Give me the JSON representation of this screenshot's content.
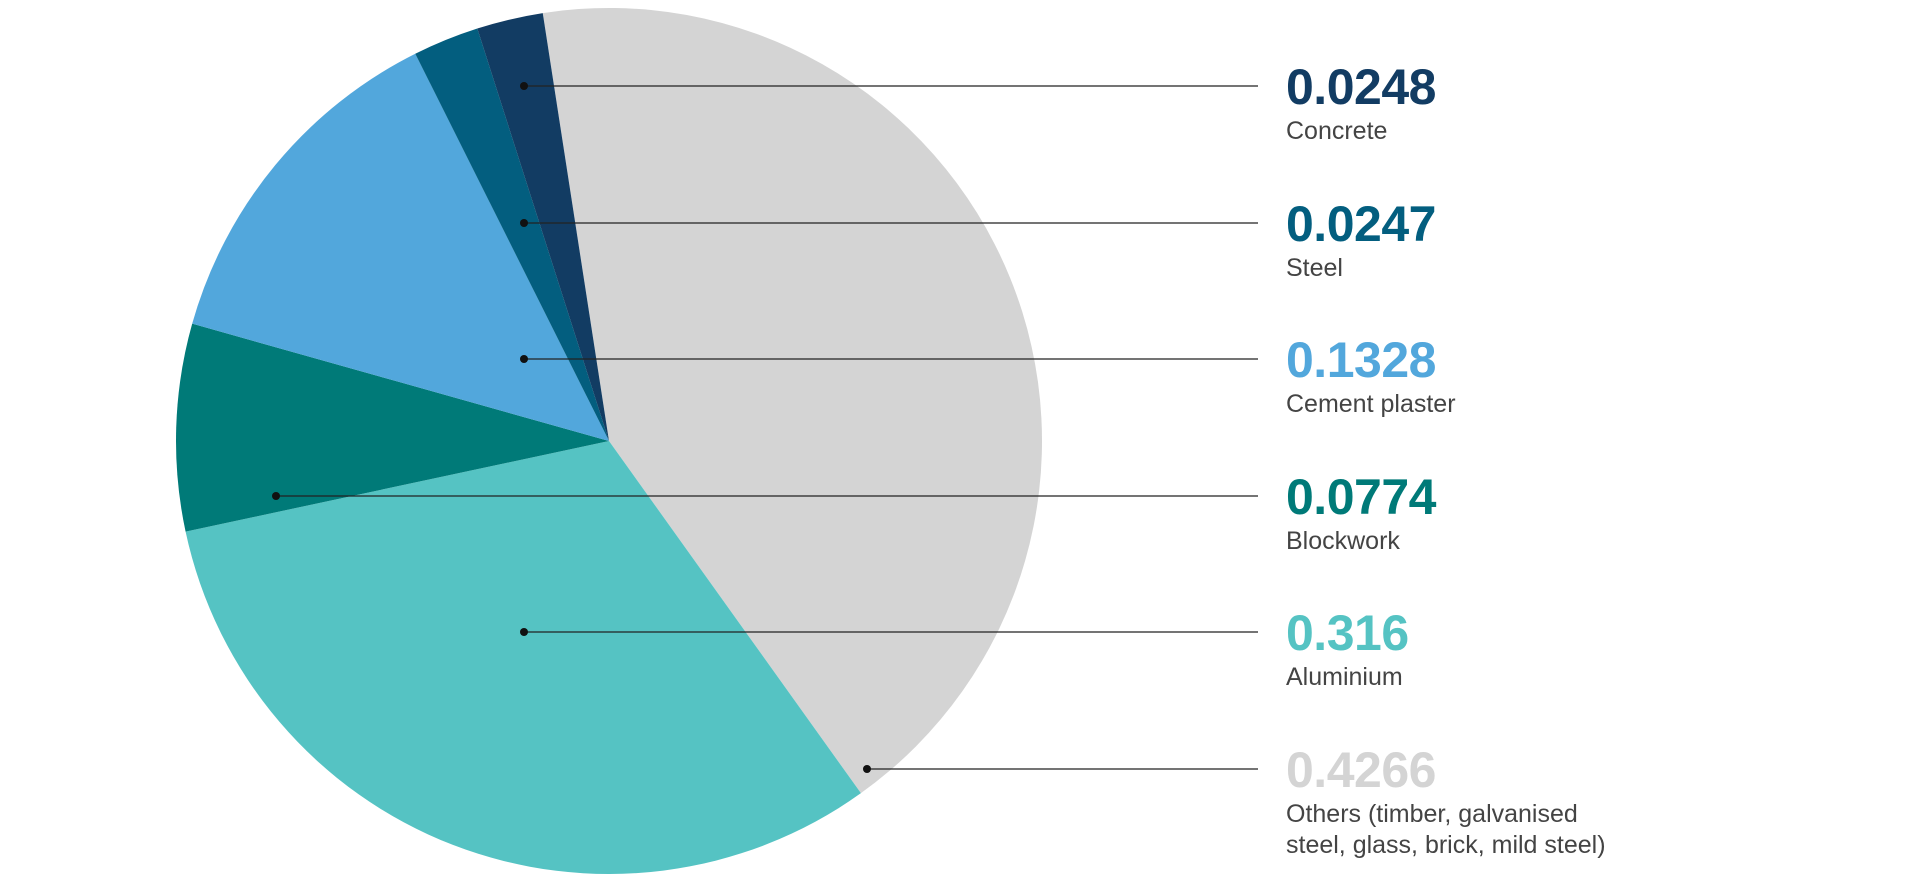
{
  "chart_data": {
    "type": "pie",
    "title": "",
    "slices": [
      {
        "label": "Others (timber, galvanised steel, glass, brick, mild steel)",
        "value": 0.4266,
        "value_text": "0.4266",
        "color": "#d4d4d4",
        "text_color": "#d4d4d4"
      },
      {
        "label": "Aluminium",
        "value": 0.316,
        "value_text": "0.316",
        "color": "#55c3c3",
        "text_color": "#55c3c3"
      },
      {
        "label": "Blockwork",
        "value": 0.0774,
        "value_text": "0.0774",
        "color": "#007a78",
        "text_color": "#007a78"
      },
      {
        "label": "Cement plaster",
        "value": 0.1328,
        "value_text": "0.1328",
        "color": "#52a7dc",
        "text_color": "#52a7dc"
      },
      {
        "label": "Steel",
        "value": 0.0247,
        "value_text": "0.0247",
        "color": "#035e7f",
        "text_color": "#035e7f"
      },
      {
        "label": "Concrete",
        "value": 0.0248,
        "value_text": "0.0248",
        "color": "#123c63",
        "text_color": "#123c63"
      }
    ],
    "legend_order": [
      "Concrete",
      "Steel",
      "Cement plaster",
      "Blockwork",
      "Aluminium",
      "Others (timber, galvanised steel, glass, brick, mild steel)"
    ],
    "legend_placement": "right"
  }
}
